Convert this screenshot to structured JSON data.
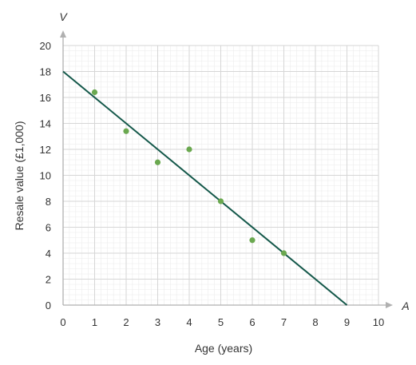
{
  "chart_data": {
    "type": "scatter",
    "title": "",
    "xlabel": "Age (years)",
    "ylabel": "Resale value (£1,000)",
    "x_axis_variable": "A",
    "y_axis_variable": "V",
    "xlim": [
      0,
      10
    ],
    "ylim": [
      0,
      20
    ],
    "x_ticks": [
      "0",
      "1",
      "2",
      "3",
      "4",
      "5",
      "6",
      "7",
      "8",
      "9",
      "10"
    ],
    "y_ticks": [
      "0",
      "2",
      "4",
      "6",
      "8",
      "10",
      "12",
      "14",
      "16",
      "18",
      "20"
    ],
    "grid": true,
    "points": [
      {
        "x": 1,
        "y": 16.4
      },
      {
        "x": 2,
        "y": 13.4
      },
      {
        "x": 3,
        "y": 11
      },
      {
        "x": 4,
        "y": 12
      },
      {
        "x": 5,
        "y": 8
      },
      {
        "x": 6,
        "y": 5
      },
      {
        "x": 7,
        "y": 4
      }
    ],
    "trend_line": {
      "x": [
        0,
        9
      ],
      "y": [
        18,
        0
      ]
    },
    "colors": {
      "points": "#6aa84f",
      "trend_line": "#14584a",
      "major_grid": "#d6d6d6",
      "minor_grid": "#ececec",
      "axis": "#b0b0b0"
    }
  }
}
